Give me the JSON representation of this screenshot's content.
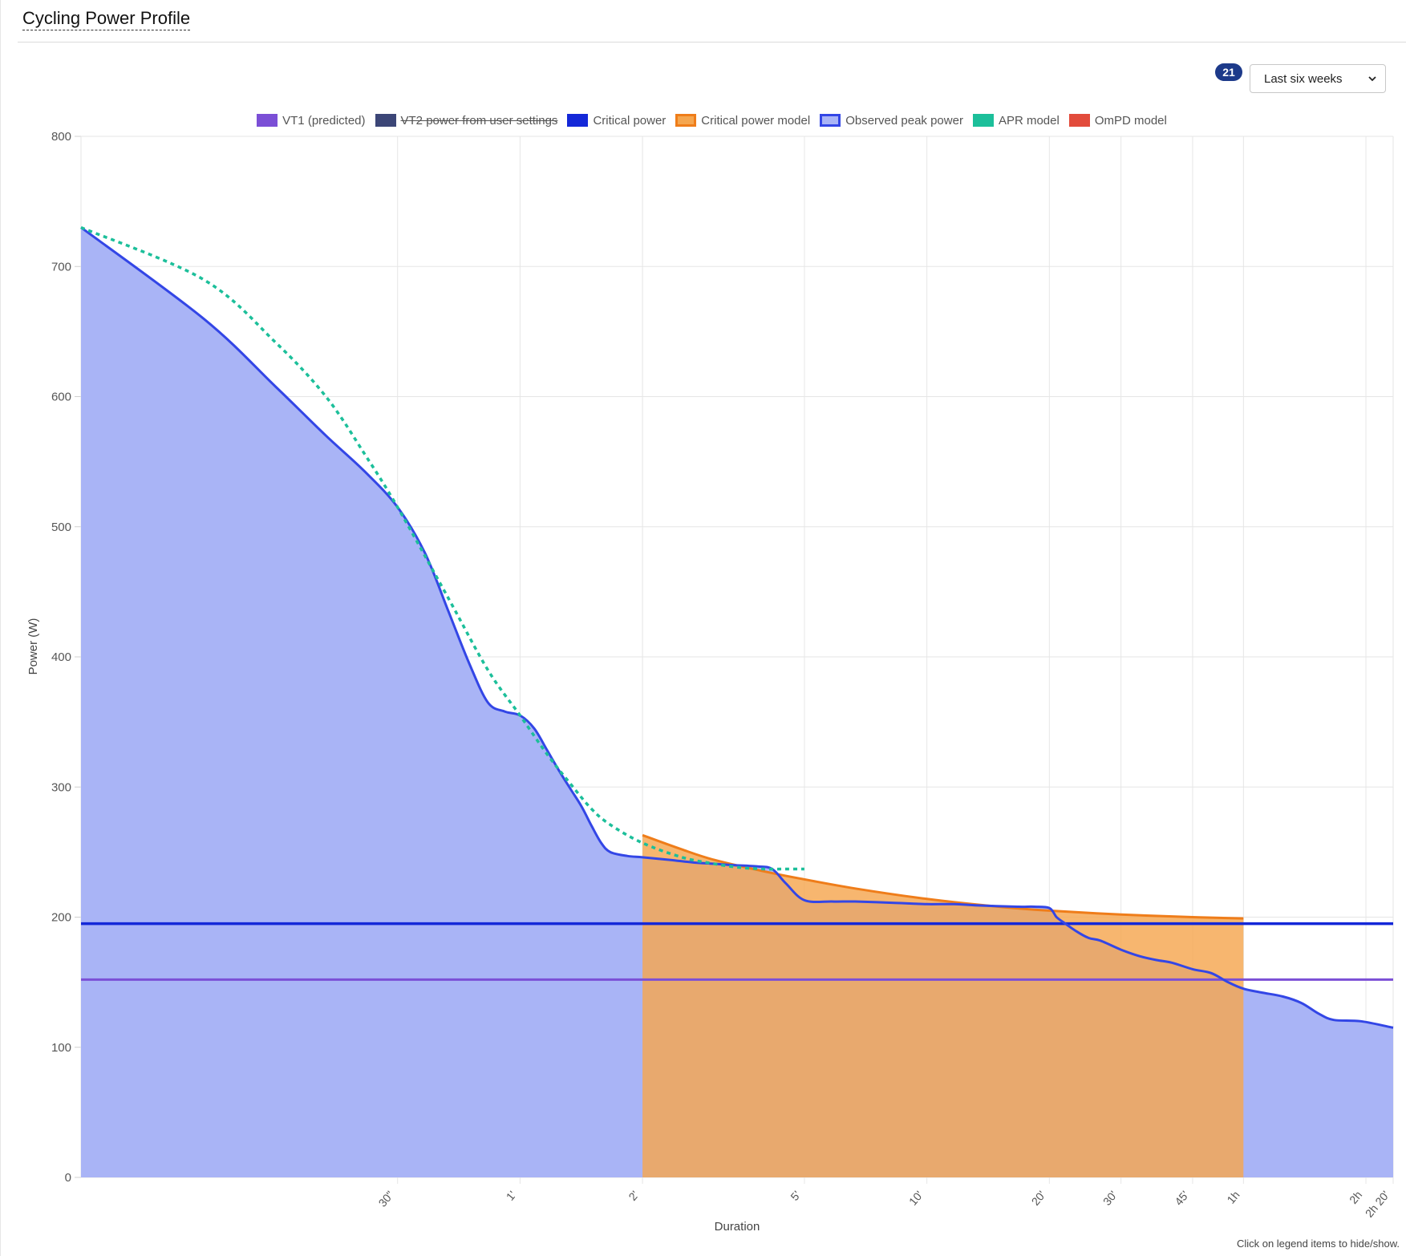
{
  "header": {
    "title": "Cycling Power Profile",
    "badge_count": "21",
    "period_select_value": "Last six weeks"
  },
  "footer": {
    "hint": "Click on legend items to hide/show."
  },
  "colors": {
    "vt1": "#7b4fd6",
    "vt2": "#3c4677",
    "critical_power": "#1428d8",
    "cp_model_line": "#ef7d1a",
    "cp_model_fill": "#f5a64f",
    "observed_line": "#3346e6",
    "observed_fill": "#a9b4f6",
    "apr": "#1cbf9a",
    "ompd": "#e24b3b",
    "badge": "#1d3a8a"
  },
  "chart_data": {
    "type": "line",
    "xlabel": "Duration",
    "ylabel": "Power (W)",
    "x_scale": "log",
    "x_unit": "seconds",
    "xlim": [
      5,
      8400
    ],
    "ylim": [
      0,
      800
    ],
    "y_ticks": [
      0,
      100,
      200,
      300,
      400,
      500,
      600,
      700,
      800
    ],
    "x_ticks": [
      {
        "value": 30,
        "label": "30\""
      },
      {
        "value": 60,
        "label": "1'"
      },
      {
        "value": 120,
        "label": "2'"
      },
      {
        "value": 300,
        "label": "5'"
      },
      {
        "value": 600,
        "label": "10'"
      },
      {
        "value": 1200,
        "label": "20'"
      },
      {
        "value": 1800,
        "label": "30'"
      },
      {
        "value": 2700,
        "label": "45'"
      },
      {
        "value": 3600,
        "label": "1h"
      },
      {
        "value": 7200,
        "label": "2h"
      },
      {
        "value": 8400,
        "label": "2h 20'"
      }
    ],
    "grid": true,
    "legend_position": "top-center",
    "series": [
      {
        "name": "VT1 (predicted)",
        "kind": "constant",
        "value": 152,
        "color": "#7b4fd6",
        "hidden": false
      },
      {
        "name": "VT2 power from user settings",
        "kind": "constant",
        "color": "#3c4677",
        "hidden": true
      },
      {
        "name": "Critical power",
        "kind": "constant",
        "value": 195,
        "color": "#1428d8",
        "hidden": false
      },
      {
        "name": "Critical power model",
        "kind": "area",
        "x": [
          120,
          150,
          180,
          240,
          300,
          400,
          600,
          900,
          1200,
          1800,
          2700,
          3600
        ],
        "y": [
          263,
          252,
          244,
          235,
          229,
          222,
          214,
          208,
          205,
          202,
          200,
          199
        ],
        "color": "#ef7d1a",
        "hidden": false
      },
      {
        "name": "Observed peak power",
        "kind": "area",
        "x": [
          5,
          10,
          15,
          20,
          25,
          30,
          35,
          40,
          45,
          50,
          55,
          60,
          65,
          70,
          75,
          80,
          85,
          90,
          95,
          100,
          110,
          120,
          140,
          160,
          180,
          200,
          230,
          250,
          270,
          300,
          350,
          400,
          500,
          600,
          700,
          800,
          1000,
          1100,
          1200,
          1250,
          1300,
          1400,
          1500,
          1600,
          1800,
          2000,
          2200,
          2400,
          2700,
          3000,
          3300,
          3600,
          4000,
          4500,
          5000,
          5500,
          6000,
          7000,
          8400
        ],
        "y": [
          730,
          660,
          608,
          570,
          542,
          515,
          480,
          435,
          395,
          365,
          358,
          355,
          345,
          328,
          312,
          298,
          285,
          270,
          257,
          250,
          247,
          246,
          244,
          242,
          241,
          240,
          239,
          237,
          226,
          213,
          212,
          212,
          211,
          210,
          210,
          209,
          208,
          208,
          207,
          200,
          196,
          189,
          184,
          182,
          175,
          170,
          167,
          165,
          160,
          157,
          150,
          145,
          142,
          139,
          134,
          126,
          121,
          120,
          115
        ],
        "color": "#3346e6",
        "hidden": false
      },
      {
        "name": "APR model",
        "kind": "dashed",
        "x": [
          5,
          10,
          15,
          20,
          25,
          30,
          40,
          50,
          60,
          70,
          80,
          90,
          100,
          120,
          150,
          180,
          210,
          240,
          270,
          300
        ],
        "y": [
          730,
          690,
          642,
          600,
          555,
          515,
          445,
          390,
          355,
          325,
          302,
          283,
          271,
          257,
          246,
          241,
          238,
          237,
          237,
          237
        ],
        "color": "#1cbf9a",
        "hidden": false
      },
      {
        "name": "OmPD model",
        "kind": "line",
        "color": "#e24b3b",
        "hidden": false
      }
    ]
  }
}
